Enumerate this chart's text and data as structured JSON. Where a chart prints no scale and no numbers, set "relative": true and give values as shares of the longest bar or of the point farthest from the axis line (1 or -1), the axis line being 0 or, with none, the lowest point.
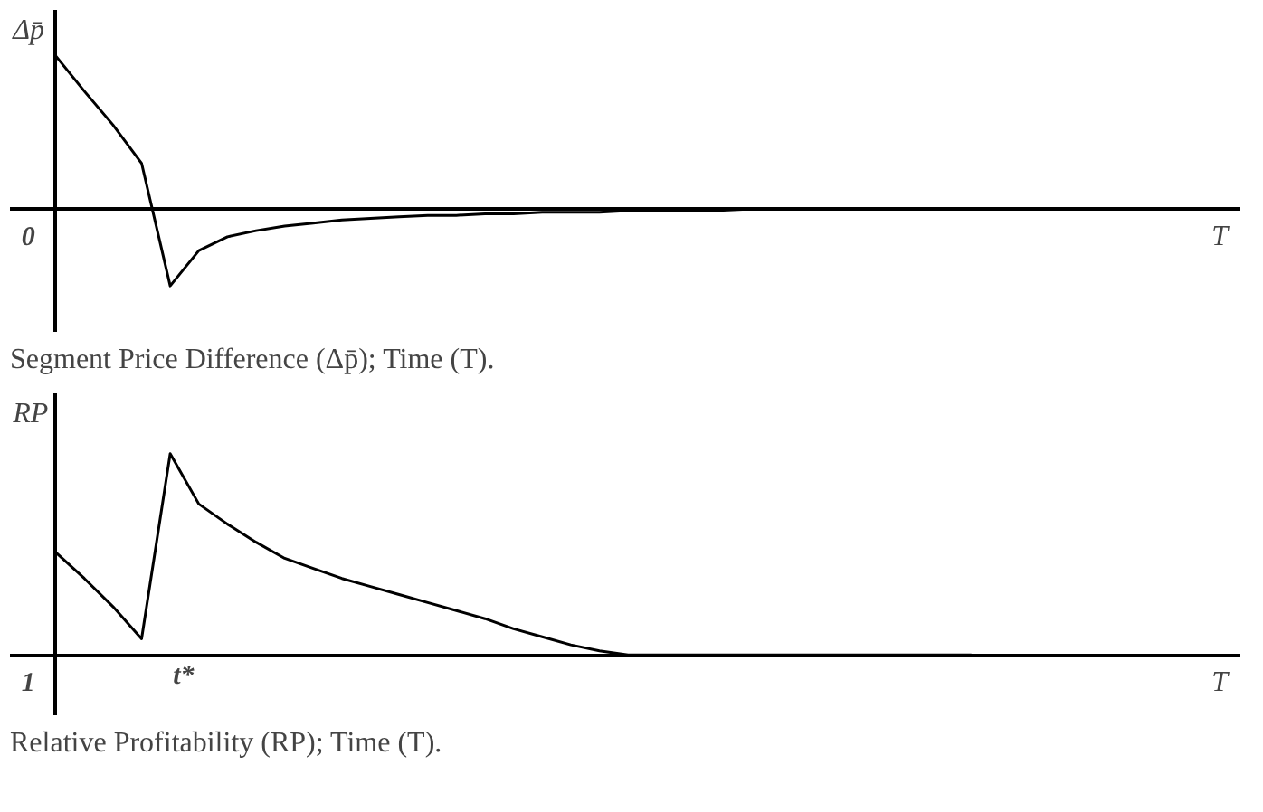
{
  "chart_data": [
    {
      "type": "line",
      "title": "Segment Price Difference (Δp̄); Time (T).",
      "xlabel": "T",
      "ylabel": "Δp̄",
      "relative": true,
      "annotations": [
        "0"
      ],
      "categories": [
        null,
        null,
        null,
        null,
        null,
        null,
        null,
        null,
        null,
        null,
        null,
        null,
        null,
        null,
        null,
        null,
        null,
        null,
        null,
        null,
        null,
        null,
        null,
        null,
        null,
        null,
        null,
        null,
        null,
        null,
        null,
        null,
        null,
        null,
        null,
        null,
        null,
        null,
        null,
        null,
        null
      ],
      "series": [
        {
          "color": "#000000",
          "values": [
            1.0,
            0.77,
            0.55,
            0.3,
            -0.5,
            -0.27,
            -0.18,
            -0.14,
            -0.11,
            -0.09,
            -0.07,
            -0.06,
            -0.05,
            -0.04,
            -0.04,
            -0.03,
            -0.03,
            -0.02,
            -0.02,
            -0.02,
            -0.01,
            -0.01,
            -0.01,
            -0.01,
            0,
            0,
            0,
            0,
            0,
            0,
            0,
            null,
            null,
            null,
            null,
            null,
            null,
            null,
            null,
            null,
            null
          ]
        }
      ]
    },
    {
      "type": "line",
      "title": "Relative Profitability (RP); Time (T).",
      "xlabel": "T",
      "ylabel": "RP",
      "relative": true,
      "annotations": [
        "1",
        "t*"
      ],
      "categories": [
        null,
        null,
        null,
        null,
        null,
        null,
        null,
        null,
        null,
        null,
        null,
        null,
        null,
        null,
        null,
        null,
        null,
        null,
        null,
        null,
        null,
        null,
        null,
        null,
        null,
        null,
        null,
        null,
        null,
        null,
        null,
        null,
        null,
        null,
        null,
        null,
        null,
        null,
        null,
        null,
        null
      ],
      "series": [
        {
          "color": "#000000",
          "values": [
            0.51,
            0.38,
            0.24,
            0.08,
            1.0,
            0.75,
            0.65,
            0.56,
            0.48,
            0.43,
            0.38,
            0.34,
            0.3,
            0.26,
            0.22,
            0.18,
            0.13,
            0.09,
            0.05,
            0.02,
            0,
            0,
            0,
            0,
            0,
            0,
            0,
            0,
            0,
            0,
            0,
            0,
            0,
            null,
            null,
            null,
            null,
            null,
            null,
            null,
            null
          ]
        }
      ]
    }
  ]
}
